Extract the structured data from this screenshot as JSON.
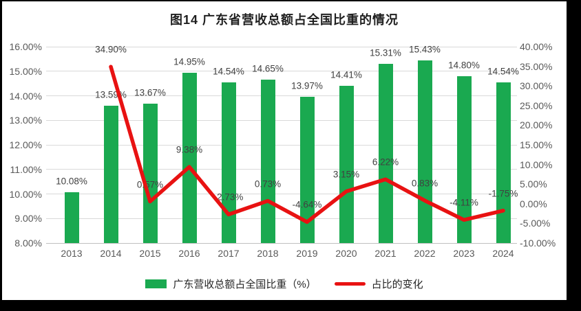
{
  "title": "图14  广东省营收总额占全国比重的情况",
  "colors": {
    "background": "#FFFFFF",
    "frame": "#000000",
    "bar": "#1AA950",
    "line": "#E81212",
    "grid": "#D9D9D9",
    "axis_line": "#BFBFBF",
    "axis_text": "#595959",
    "label_text": "#404040",
    "title_text": "#1F1F1F"
  },
  "chart_data": {
    "type": "combo-bar-line",
    "title": "图14  广东省营收总额占全国比重的情况",
    "categories": [
      "2013",
      "2014",
      "2015",
      "2016",
      "2017",
      "2018",
      "2019",
      "2020",
      "2021",
      "2022",
      "2023",
      "2024"
    ],
    "series": [
      {
        "name": "广东营收总额占全国比重（%）",
        "type": "bar",
        "axis": "left",
        "color": "#1AA950",
        "values": [
          10.08,
          13.59,
          13.67,
          14.95,
          14.54,
          14.65,
          13.97,
          14.41,
          15.31,
          15.43,
          14.8,
          14.54
        ],
        "labels": [
          "10.08%",
          "13.59%",
          "13.67%",
          "14.95%",
          "14.54%",
          "14.65%",
          "13.97%",
          "14.41%",
          "15.31%",
          "15.43%",
          "14.80%",
          "14.54%"
        ]
      },
      {
        "name": "占比的变化",
        "type": "line",
        "axis": "right",
        "color": "#E81212",
        "values": [
          null,
          34.9,
          0.57,
          9.38,
          -2.73,
          0.73,
          -4.64,
          3.15,
          6.22,
          0.83,
          -4.11,
          -1.75
        ],
        "labels": [
          null,
          "34.90%",
          "0.57%",
          "9.38%",
          "-2.73%",
          "0.73%",
          "-4.64%",
          "3.15%",
          "6.22%",
          "0.83%",
          "-4.11%",
          "-1.75%"
        ]
      }
    ],
    "left_axis": {
      "min": 8,
      "max": 16,
      "step": 1,
      "ticks": [
        "16.00%",
        "15.00%",
        "14.00%",
        "13.00%",
        "12.00%",
        "11.00%",
        "10.00%",
        "9.00%",
        "8.00%"
      ]
    },
    "right_axis": {
      "min": -10,
      "max": 40,
      "step": 5,
      "ticks": [
        "40.00%",
        "35.00%",
        "30.00%",
        "25.00%",
        "20.00%",
        "15.00%",
        "10.00%",
        "5.00%",
        "0.00%",
        "-5.00%",
        "-10.00%"
      ]
    },
    "grid": true,
    "legend_position": "bottom"
  }
}
